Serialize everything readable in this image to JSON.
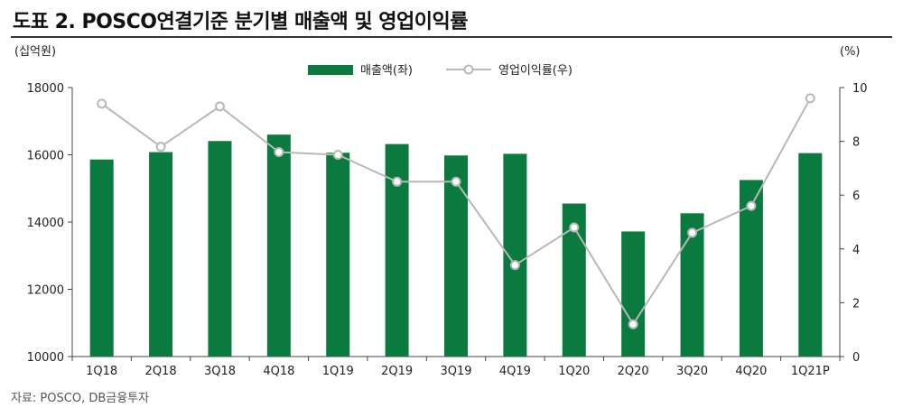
{
  "title": "도표 2. POSCO연결기준 분기별 매출액 및 영업이익률",
  "source": "자료: POSCO, DB금융투자",
  "chart_data": {
    "type": "bar",
    "categories": [
      "1Q18",
      "2Q18",
      "3Q18",
      "4Q18",
      "1Q19",
      "2Q19",
      "3Q19",
      "4Q19",
      "1Q20",
      "2Q20",
      "3Q20",
      "4Q20",
      "1Q21P"
    ],
    "series": [
      {
        "name": "매출액(좌)",
        "type": "bar",
        "axis": "left",
        "color": "#0a7a3f",
        "values": [
          15860,
          16080,
          16410,
          16600,
          16060,
          16320,
          15980,
          16030,
          14550,
          13720,
          14260,
          15250,
          16050
        ]
      },
      {
        "name": "영업이익률(우)",
        "type": "line",
        "axis": "right",
        "color": "#b8b8b8",
        "values": [
          9.4,
          7.8,
          9.3,
          7.6,
          7.5,
          6.5,
          6.5,
          3.4,
          4.8,
          1.2,
          4.6,
          5.6,
          9.6
        ]
      }
    ],
    "ylabel_left": "(십억원)",
    "ylabel_right": "(%)",
    "ylim_left": [
      10000,
      18000
    ],
    "ylim_right": [
      0,
      10
    ],
    "yticks_left": [
      "10000",
      "12000",
      "14000",
      "16000",
      "18000"
    ],
    "yticks_right": [
      "0",
      "2",
      "4",
      "6",
      "8",
      "10"
    ],
    "grid": false,
    "legend_position": "top-center"
  }
}
